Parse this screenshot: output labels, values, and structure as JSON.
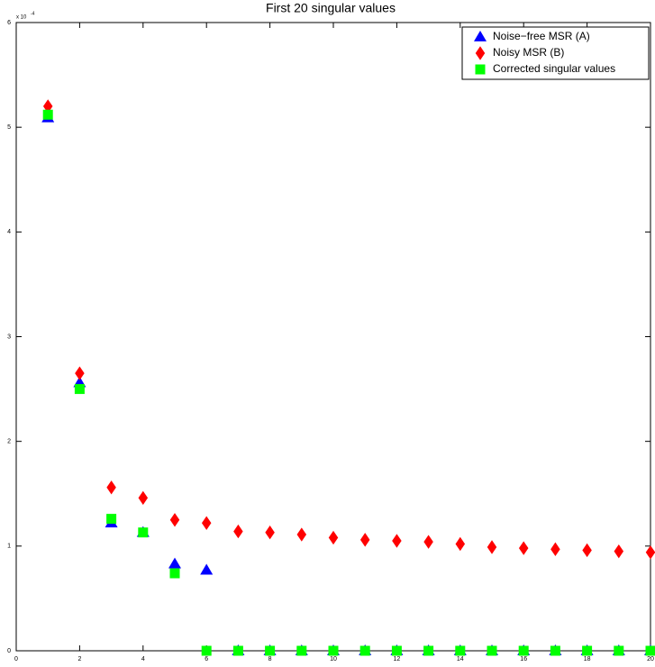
{
  "chart_data": {
    "type": "scatter",
    "title": "First 20 singular values",
    "y_scale_label": "x 10",
    "y_scale_exponent": "-4",
    "x": [
      1,
      2,
      3,
      4,
      5,
      6,
      7,
      8,
      9,
      10,
      11,
      12,
      13,
      14,
      15,
      16,
      17,
      18,
      19,
      20
    ],
    "series": [
      {
        "name": "Noise−free MSR (A)",
        "color": "#0000ff",
        "marker": "triangle",
        "values": [
          5.09,
          2.56,
          1.22,
          1.13,
          0.83,
          0.77,
          0,
          0,
          0,
          0,
          0,
          0,
          0,
          0,
          0,
          0,
          0,
          0,
          0,
          0
        ]
      },
      {
        "name": "Noisy MSR (B)",
        "color": "#ff0000",
        "marker": "diamond",
        "values": [
          5.2,
          2.65,
          1.56,
          1.46,
          1.25,
          1.22,
          1.14,
          1.13,
          1.11,
          1.08,
          1.06,
          1.05,
          1.04,
          1.02,
          0.99,
          0.98,
          0.97,
          0.96,
          0.95,
          0.94
        ]
      },
      {
        "name": "Corrected singular values",
        "color": "#00ff00",
        "marker": "square",
        "values": [
          5.12,
          2.5,
          1.26,
          1.13,
          0.74,
          0,
          0,
          0,
          0,
          0,
          0,
          0,
          0,
          0,
          0,
          0,
          0,
          0,
          0,
          0
        ]
      }
    ],
    "xlim": [
      0,
      20
    ],
    "xticks": [
      0,
      2,
      4,
      6,
      8,
      10,
      12,
      14,
      16,
      18,
      20
    ],
    "ylim": [
      0,
      6
    ],
    "yticks": [
      0,
      1,
      2,
      3,
      4,
      5,
      6
    ],
    "grid": false,
    "legend": "upper right"
  }
}
